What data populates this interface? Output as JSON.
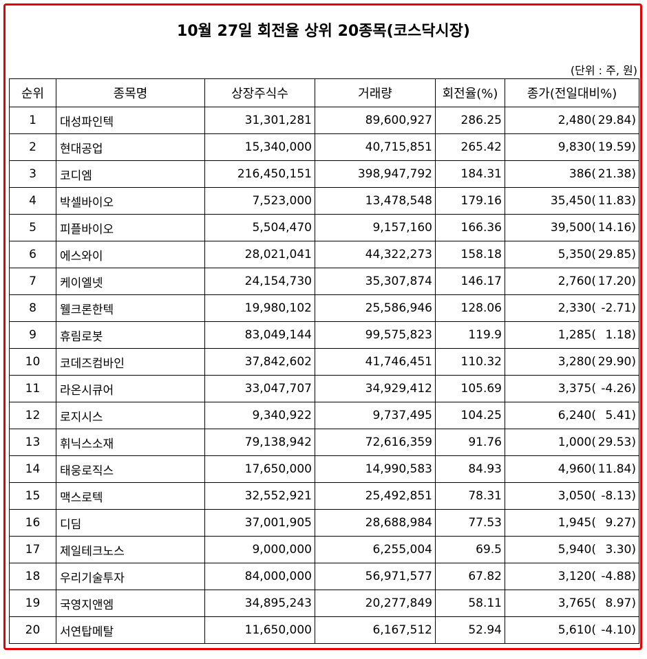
{
  "title": "10월 27일 회전율 상위 20종목(코스닥시장)",
  "unit_note": "(단위 : 주, 원)",
  "columns": [
    "순위",
    "종목명",
    "상장주식수",
    "거래량",
    "회전율(%)",
    "종가(전일대비%)"
  ],
  "rows": [
    {
      "rank": "1",
      "name": "대성파인텍",
      "listed": "31,301,281",
      "volume": "89,600,927",
      "turnover": "286.25",
      "close": "2,480(",
      "change": "29.84)"
    },
    {
      "rank": "2",
      "name": "현대공업",
      "listed": "15,340,000",
      "volume": "40,715,851",
      "turnover": "265.42",
      "close": "9,830(",
      "change": "19.59)"
    },
    {
      "rank": "3",
      "name": "코디엠",
      "listed": "216,450,151",
      "volume": "398,947,792",
      "turnover": "184.31",
      "close": "386(",
      "change": "21.38)"
    },
    {
      "rank": "4",
      "name": "박셀바이오",
      "listed": "7,523,000",
      "volume": "13,478,548",
      "turnover": "179.16",
      "close": "35,450(",
      "change": "11.83)"
    },
    {
      "rank": "5",
      "name": "피플바이오",
      "listed": "5,504,470",
      "volume": "9,157,160",
      "turnover": "166.36",
      "close": "39,500(",
      "change": "14.16)"
    },
    {
      "rank": "6",
      "name": "에스와이",
      "listed": "28,021,041",
      "volume": "44,322,273",
      "turnover": "158.18",
      "close": "5,350(",
      "change": "29.85)"
    },
    {
      "rank": "7",
      "name": "케이엘넷",
      "listed": "24,154,730",
      "volume": "35,307,874",
      "turnover": "146.17",
      "close": "2,760(",
      "change": "17.20)"
    },
    {
      "rank": "8",
      "name": "웰크론한텍",
      "listed": "19,980,102",
      "volume": "25,586,946",
      "turnover": "128.06",
      "close": "2,330(",
      "change": "-2.71)"
    },
    {
      "rank": "9",
      "name": "휴림로봇",
      "listed": "83,049,144",
      "volume": "99,575,823",
      "turnover": "119.9",
      "close": "1,285(",
      "change": "1.18)"
    },
    {
      "rank": "10",
      "name": "코데즈컴바인",
      "listed": "37,842,602",
      "volume": "41,746,451",
      "turnover": "110.32",
      "close": "3,280(",
      "change": "29.90)"
    },
    {
      "rank": "11",
      "name": "라온시큐어",
      "listed": "33,047,707",
      "volume": "34,929,412",
      "turnover": "105.69",
      "close": "3,375(",
      "change": "-4.26)"
    },
    {
      "rank": "12",
      "name": "로지시스",
      "listed": "9,340,922",
      "volume": "9,737,495",
      "turnover": "104.25",
      "close": "6,240(",
      "change": "5.41)"
    },
    {
      "rank": "13",
      "name": "휘닉스소재",
      "listed": "79,138,942",
      "volume": "72,616,359",
      "turnover": "91.76",
      "close": "1,000(",
      "change": "29.53)"
    },
    {
      "rank": "14",
      "name": "태웅로직스",
      "listed": "17,650,000",
      "volume": "14,990,583",
      "turnover": "84.93",
      "close": "4,960(",
      "change": "11.84)"
    },
    {
      "rank": "15",
      "name": "맥스로텍",
      "listed": "32,552,921",
      "volume": "25,492,851",
      "turnover": "78.31",
      "close": "3,050(",
      "change": "-8.13)"
    },
    {
      "rank": "16",
      "name": "디딤",
      "listed": "37,001,905",
      "volume": "28,688,984",
      "turnover": "77.53",
      "close": "1,945(",
      "change": "9.27)"
    },
    {
      "rank": "17",
      "name": "제일테크노스",
      "listed": "9,000,000",
      "volume": "6,255,004",
      "turnover": "69.5",
      "close": "5,940(",
      "change": "3.30)"
    },
    {
      "rank": "18",
      "name": "우리기술투자",
      "listed": "84,000,000",
      "volume": "56,971,577",
      "turnover": "67.82",
      "close": "3,120(",
      "change": "-4.88)"
    },
    {
      "rank": "19",
      "name": "국영지앤엠",
      "listed": "34,895,243",
      "volume": "20,277,849",
      "turnover": "58.11",
      "close": "3,765(",
      "change": "8.97)"
    },
    {
      "rank": "20",
      "name": "서연탑메탈",
      "listed": "11,650,000",
      "volume": "6,167,512",
      "turnover": "52.94",
      "close": "5,610(",
      "change": "-4.10)"
    }
  ]
}
